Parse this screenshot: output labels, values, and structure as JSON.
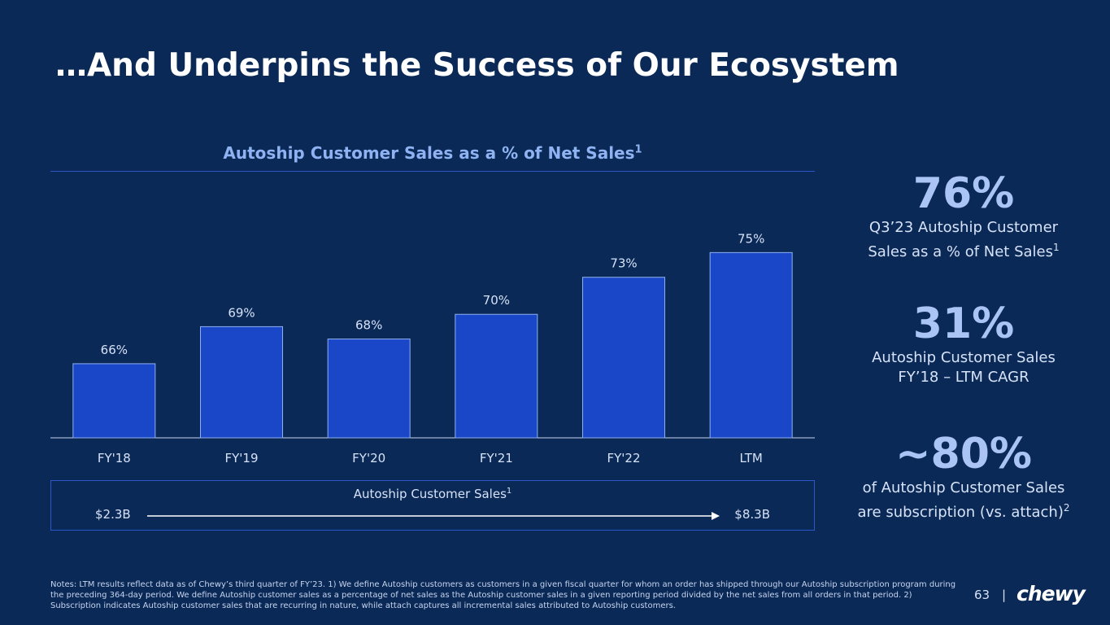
{
  "slide": {
    "title": "…And Underpins the Success of Our Ecosystem",
    "page_number": "63",
    "separator": "|",
    "logo_text": "chewy"
  },
  "chart_data": {
    "type": "bar",
    "title": "Autoship Customer Sales as a % of Net Sales",
    "title_footnote": "1",
    "categories": [
      "FY'18",
      "FY'19",
      "FY'20",
      "FY'21",
      "FY'22",
      "LTM"
    ],
    "values": [
      66,
      69,
      68,
      70,
      73,
      75
    ],
    "value_labels": [
      "66%",
      "69%",
      "68%",
      "70%",
      "73%",
      "75%"
    ],
    "unit": "%",
    "ylim": [
      60,
      77
    ],
    "xlabel": "",
    "ylabel": "",
    "grid": false,
    "bar_color": "#1a47c8",
    "bar_border": "#8fb0ef"
  },
  "autoship_sales": {
    "label": "Autoship Customer Sales",
    "footnote": "1",
    "start": "$2.3B",
    "end": "$8.3B"
  },
  "stats": [
    {
      "value": "76%",
      "line1": "Q3’23 Autoship Customer",
      "line2": "Sales as a % of Net Sales",
      "footnote": "1"
    },
    {
      "value": "31%",
      "line1": "Autoship Customer Sales",
      "line2": "FY’18 – LTM CAGR",
      "footnote": ""
    },
    {
      "value": "~80%",
      "line1": "of Autoship Customer Sales",
      "line2": "are subscription (vs. attach)",
      "footnote": "2"
    }
  ],
  "notes": "Notes: LTM results reflect data as of Chewy’s third quarter of FY’23. 1) We define Autoship customers as customers in a given fiscal quarter for whom an order has shipped through our Autoship subscription program during the preceding 364-day period. We define Autoship customer sales as a percentage of net sales as the Autoship customer sales in a given reporting period divided by the net sales from all orders in that period. 2) Subscription indicates Autoship customer sales that are recurring in nature, while attach captures all incremental sales attributed to Autoship customers.",
  "colors": {
    "background": "#0b2957",
    "accent": "#a9c4f5",
    "rule": "#2d57c9"
  }
}
